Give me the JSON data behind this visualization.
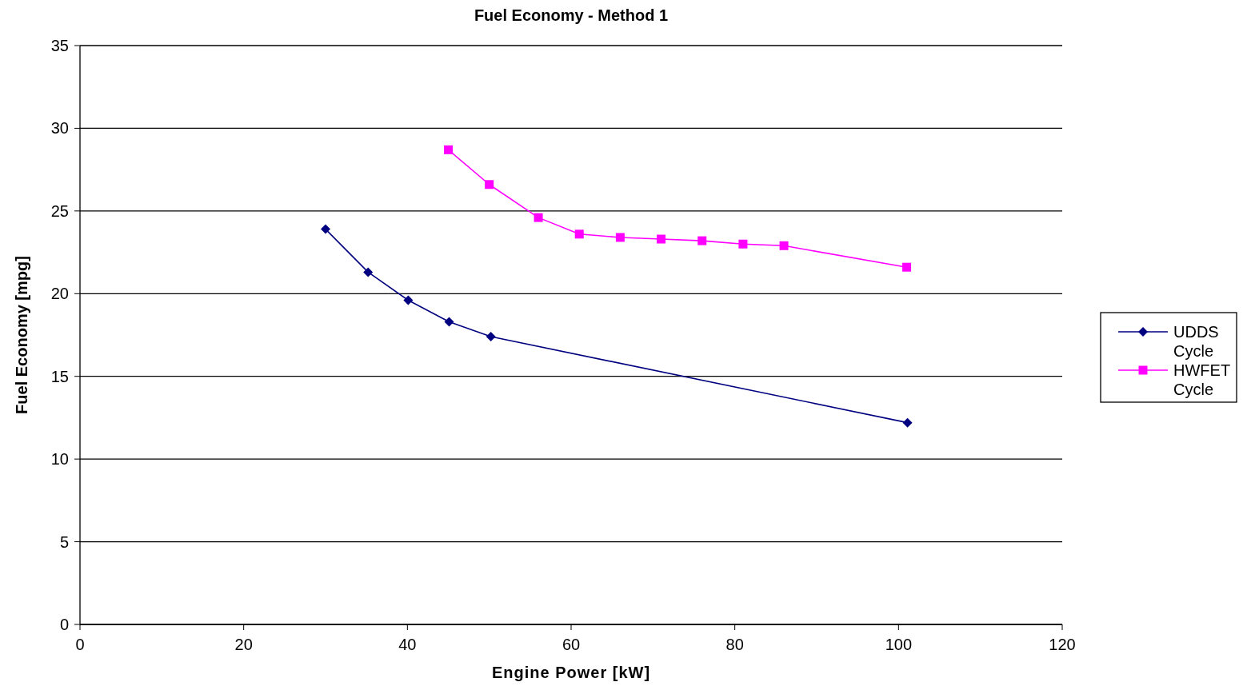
{
  "chart_data": {
    "type": "line",
    "title": "Fuel Economy - Method 1",
    "xlabel": "Engine Power [kW]",
    "ylabel": "Fuel Economy [mpg]",
    "xlim": [
      0,
      120
    ],
    "xticks": [
      0,
      20,
      40,
      60,
      80,
      100,
      120
    ],
    "ylim": [
      0,
      35
    ],
    "yticks": [
      0,
      5,
      10,
      15,
      20,
      25,
      30,
      35
    ],
    "grid": "y",
    "legend": "right",
    "series": [
      {
        "name": "UDDS Cycle",
        "color": "#000080",
        "marker": "diamond",
        "x": [
          30,
          35.2,
          40.1,
          45.1,
          50.2,
          101.1
        ],
        "values": [
          23.9,
          21.3,
          19.6,
          18.3,
          17.4,
          12.2
        ]
      },
      {
        "name": "HWFET Cycle",
        "color": "#ff00ff",
        "marker": "square",
        "x": [
          45,
          50,
          56,
          61,
          66,
          71,
          76,
          81,
          86,
          101
        ],
        "values": [
          28.7,
          26.6,
          24.6,
          23.6,
          23.4,
          23.3,
          23.2,
          23.0,
          22.9,
          21.6
        ]
      }
    ]
  }
}
